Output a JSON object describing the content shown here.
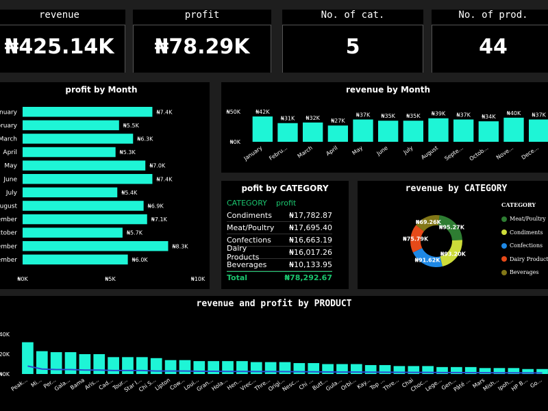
{
  "kpis": [
    {
      "title": "revenue",
      "value": "₦425.14K"
    },
    {
      "title": "profit",
      "value": "₦78.29K"
    },
    {
      "title": "No. of cat.",
      "value": "5"
    },
    {
      "title": "No. of prod.",
      "value": "44"
    }
  ],
  "colors": {
    "bar": "#1ef5d6",
    "line": "#2a4dd0"
  },
  "profit_table": {
    "title": "pofit by CATEGORY",
    "col1": "CATEGORY",
    "col2": "profit",
    "rows": [
      {
        "category": "Condiments",
        "profit": "₦17,782.87"
      },
      {
        "category": "Meat/Poultry",
        "profit": "₦17,695.40"
      },
      {
        "category": "Confections",
        "profit": "₦16,663.19"
      },
      {
        "category": "Dairy Products",
        "profit": "₦16,017.26"
      },
      {
        "category": "Beverages",
        "profit": "₦10,133.95"
      }
    ],
    "total_label": "Total",
    "total_value": "₦78,292.67"
  },
  "chart_data": [
    {
      "id": "profit-month",
      "type": "bar",
      "orientation": "horizontal",
      "title": "profit by Month",
      "categories": [
        "January",
        "February",
        "March",
        "April",
        "May",
        "June",
        "July",
        "August",
        "September",
        "October",
        "November",
        "December"
      ],
      "category_labels": [
        "January",
        "ebruary",
        "March",
        "April",
        "May",
        "June",
        "July",
        "August",
        "ember",
        "October",
        "ember",
        "ember"
      ],
      "values": [
        7.4,
        5.5,
        6.3,
        5.3,
        7.0,
        7.4,
        5.4,
        6.9,
        7.1,
        5.7,
        8.3,
        6.0
      ],
      "data_labels": [
        "₦7.4K",
        "₦5.5K",
        "₦6.3K",
        "₦5.3K",
        "₦7.0K",
        "₦7.4K",
        "₦5.4K",
        "₦6.9K",
        "₦7.1K",
        "₦5.7K",
        "₦8.3K",
        "₦6.0K"
      ],
      "xlim": [
        0,
        10
      ],
      "x_ticks": [
        {
          "v": 0,
          "label": "₦0K"
        },
        {
          "v": 5,
          "label": "₦5K"
        },
        {
          "v": 10,
          "label": "₦10K"
        }
      ]
    },
    {
      "id": "revenue-month",
      "type": "bar",
      "title": "revenue by Month",
      "categories": [
        "January",
        "February",
        "March",
        "April",
        "May",
        "June",
        "July",
        "August",
        "September",
        "October",
        "November",
        "December"
      ],
      "category_labels": [
        "January",
        "Febru...",
        "March",
        "April",
        "May",
        "June",
        "July",
        "August",
        "Septe...",
        "Octob...",
        "Nove...",
        "Dece..."
      ],
      "values": [
        42,
        31,
        32,
        27,
        37,
        35,
        35,
        39,
        37,
        34,
        40,
        37
      ],
      "data_labels": [
        "₦42K",
        "₦31K",
        "₦32K",
        "₦27K",
        "₦37K",
        "₦35K",
        "₦35K",
        "₦39K",
        "₦37K",
        "₦34K",
        "₦40K",
        "₦37K"
      ],
      "ylim": [
        0,
        50
      ],
      "y_ticks": [
        {
          "v": 0,
          "label": "₦0K"
        },
        {
          "v": 50,
          "label": "₦50K"
        }
      ]
    },
    {
      "id": "revenue-category",
      "type": "pie",
      "title": "revenue by CATEGORY",
      "legend_title": "CATEGORY",
      "legend_position": "right",
      "slices": [
        {
          "name": "Meat/Poultry",
          "value": 95.27,
          "label": "₦95.27K",
          "color": "#2e7d32"
        },
        {
          "name": "Condiments",
          "value": 93.2,
          "label": "₦93.20K",
          "color": "#cddc39"
        },
        {
          "name": "Confections",
          "value": 91.62,
          "label": "₦91.62K",
          "color": "#1e88e5"
        },
        {
          "name": "Dairy Products",
          "value": 75.79,
          "label": "₦75.79K",
          "color": "#e64a19"
        },
        {
          "name": "Beverages",
          "value": 69.26,
          "label": "₦69.26K",
          "color": "#827717"
        }
      ]
    },
    {
      "id": "revenue-profit-product",
      "type": "bar",
      "title": "revenue and profit by PRODUCT",
      "categories": [
        "Peak...",
        "Mi...",
        "Per...",
        "Gala...",
        "Bama",
        "Aris...",
        "Cad...",
        "Tour...",
        "Star l...",
        "Chi S...",
        "Lipton",
        "Cow...",
        "Loui...",
        "Gran...",
        "Hola...",
        "Hen...",
        "Vrec...",
        "Thre...",
        "Origi...",
        "Nesc...",
        "Chi ...",
        "Butt...",
        "Gula...",
        "Orbi...",
        "Kay...",
        "Top ...",
        "Thre...",
        "Chai",
        "Choc...",
        "Lege...",
        "Gen...",
        "Pâté ...",
        "Mars",
        "Mish...",
        "Ipoh...",
        "HP B...",
        "Go..."
      ],
      "series": [
        {
          "name": "revenue",
          "values": [
            32,
            23,
            22,
            22,
            20,
            20,
            17,
            17,
            17,
            16,
            14,
            14,
            13,
            13,
            13,
            13,
            12,
            12,
            12,
            11,
            11,
            10,
            10,
            10,
            9,
            9,
            8,
            8,
            8,
            7,
            7,
            7,
            6,
            6,
            6,
            5,
            5
          ]
        },
        {
          "name": "profit",
          "values": [
            8,
            5,
            4.5,
            4.5,
            4,
            4,
            3.5,
            3.5,
            3.5,
            3,
            3,
            3,
            2.8,
            2.8,
            2.6,
            2.6,
            2.5,
            2.5,
            2.4,
            2.3,
            2.2,
            2.1,
            2,
            2,
            1.9,
            1.8,
            1.7,
            1.6,
            1.6,
            1.5,
            1.5,
            1.4,
            1.3,
            1.2,
            1.2,
            1.1,
            1
          ]
        }
      ],
      "ylim": [
        0,
        40
      ],
      "y_ticks": [
        {
          "v": 0,
          "label": "₦0K"
        },
        {
          "v": 20,
          "label": "₦20K"
        },
        {
          "v": 40,
          "label": "₦40K"
        }
      ]
    }
  ]
}
